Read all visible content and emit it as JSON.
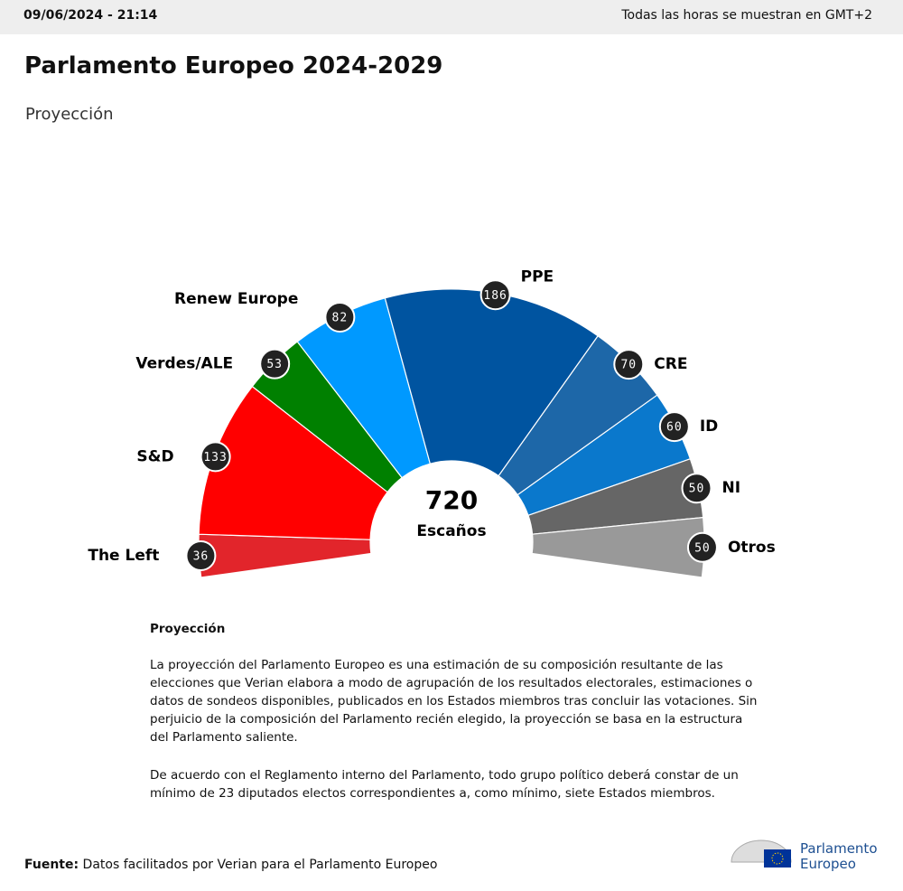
{
  "header": {
    "datetime": "09/06/2024 - 21:14",
    "timezone": "Todas las horas se muestran en GMT+2"
  },
  "chart_data": {
    "type": "parliament",
    "title": "Parlamento Europeo 2024-2029",
    "subtitle": "Proyección",
    "categories": [
      "The Left",
      "S&D",
      "Verdes/ALE",
      "Renew Europe",
      "PPE",
      "CRE",
      "ID",
      "NI",
      "Otros"
    ],
    "values": [
      36,
      133,
      53,
      82,
      186,
      70,
      60,
      50,
      50
    ],
    "colors": [
      "#e2252b",
      "#ff0000",
      "#008000",
      "#0099ff",
      "#0054a0",
      "#1d67a8",
      "#0a78cc",
      "#666666",
      "#999999"
    ],
    "total": 720,
    "total_label": "Escaños"
  },
  "notes": {
    "heading": "Proyección",
    "paragraphs": [
      "La proyección del Parlamento Europeo es una estimación de su composición resultante de las elecciones que Verian elabora a modo de agrupación de los resultados electorales, estimaciones o datos de sondeos disponibles, publicados en los Estados miembros tras concluir las votaciones. Sin perjuicio de la composición del Parlamento recién elegido, la proyección se basa en la estructura del Parlamento saliente.",
      "De acuerdo con el Reglamento interno del Parlamento, todo grupo político deberá constar de un mínimo de 23 diputados electos correspondientes a, como mínimo, siete Estados miembros."
    ]
  },
  "footer": {
    "source_label": "Fuente:",
    "source": "Datos facilitados por Verian para el Parlamento Europeo",
    "logo": [
      "Parlamento",
      "Europeo"
    ]
  }
}
